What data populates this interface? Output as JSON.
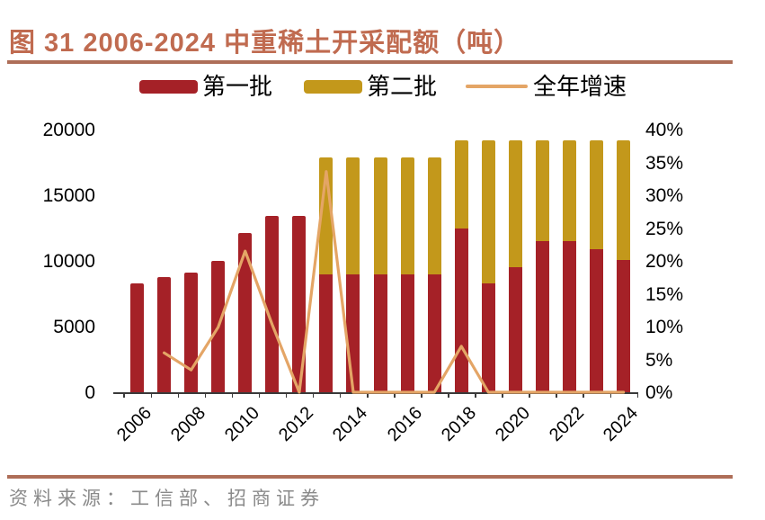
{
  "title": {
    "text": "图 31 2006-2024 中重稀土开采配额（吨）"
  },
  "source": {
    "text": "资料来源：工信部、招商证券"
  },
  "colors": {
    "title_text": "#C06B50",
    "rule": "#AE6E58",
    "bar_first_batch": "#A52127",
    "bar_second_batch": "#C3981B",
    "growth_line": "#E4A566",
    "axis_text": "#000000",
    "axis_line": "#3A3A3A",
    "source_text": "#8A8A8A"
  },
  "legend": {
    "items": [
      {
        "label": "第一批",
        "marker": "swatch",
        "color": "#A52127"
      },
      {
        "label": "第二批",
        "marker": "swatch",
        "color": "#C3981B"
      },
      {
        "label": "全年增速",
        "marker": "line",
        "color": "#E4A566"
      }
    ]
  },
  "chart_data": {
    "type": "bar",
    "subtype": "stacked-bar-with-line",
    "title": "图 31 2006-2024 中重稀土开采配额（吨）",
    "categories": [
      2006,
      2007,
      2008,
      2009,
      2010,
      2011,
      2012,
      2013,
      2014,
      2015,
      2016,
      2017,
      2018,
      2019,
      2020,
      2021,
      2022,
      2023,
      2024
    ],
    "series": [
      {
        "name": "第一批",
        "type": "bar",
        "stack": "quota",
        "color": "#A52127",
        "values": [
          8300,
          8800,
          9100,
          10000,
          12150,
          13400,
          13400,
          8950,
          8950,
          8950,
          8950,
          8950,
          12450,
          8300,
          9500,
          11490,
          11490,
          10900,
          10050
        ]
      },
      {
        "name": "第二批",
        "type": "bar",
        "stack": "quota",
        "color": "#C3981B",
        "values": [
          0,
          0,
          0,
          0,
          0,
          0,
          0,
          8950,
          8950,
          8950,
          8950,
          8950,
          6700,
          10850,
          9650,
          7660,
          7660,
          8250,
          9100
        ]
      },
      {
        "name": "全年增速",
        "type": "line",
        "axis": "right",
        "color": "#E4A566",
        "values_pct": [
          null,
          6.0,
          3.4,
          9.9,
          21.5,
          10.3,
          0.0,
          33.6,
          0.0,
          0.0,
          0.0,
          0.0,
          7.0,
          0.0,
          0.0,
          0.0,
          0.0,
          0.0,
          0.0
        ]
      }
    ],
    "totals": [
      8300,
      8800,
      9100,
      10000,
      12150,
      13400,
      13400,
      17900,
      17900,
      17900,
      17900,
      17900,
      19150,
      19150,
      19150,
      19150,
      19150,
      19150,
      19150
    ],
    "left_axis": {
      "min": 0,
      "max": 20000,
      "tick_labels": [
        "0",
        "5000",
        "10000",
        "15000",
        "20000"
      ]
    },
    "right_axis": {
      "min": 0,
      "max": 40,
      "tick_labels": [
        "0%",
        "5%",
        "10%",
        "15%",
        "20%",
        "25%",
        "30%",
        "35%",
        "40%"
      ]
    },
    "x_axis": {
      "label_interval": 2,
      "shown_labels": [
        "2006",
        "2008",
        "2010",
        "2012",
        "2014",
        "2016",
        "2018",
        "2020",
        "2022",
        "2024"
      ]
    },
    "grid": "off",
    "legend_position": "top"
  }
}
